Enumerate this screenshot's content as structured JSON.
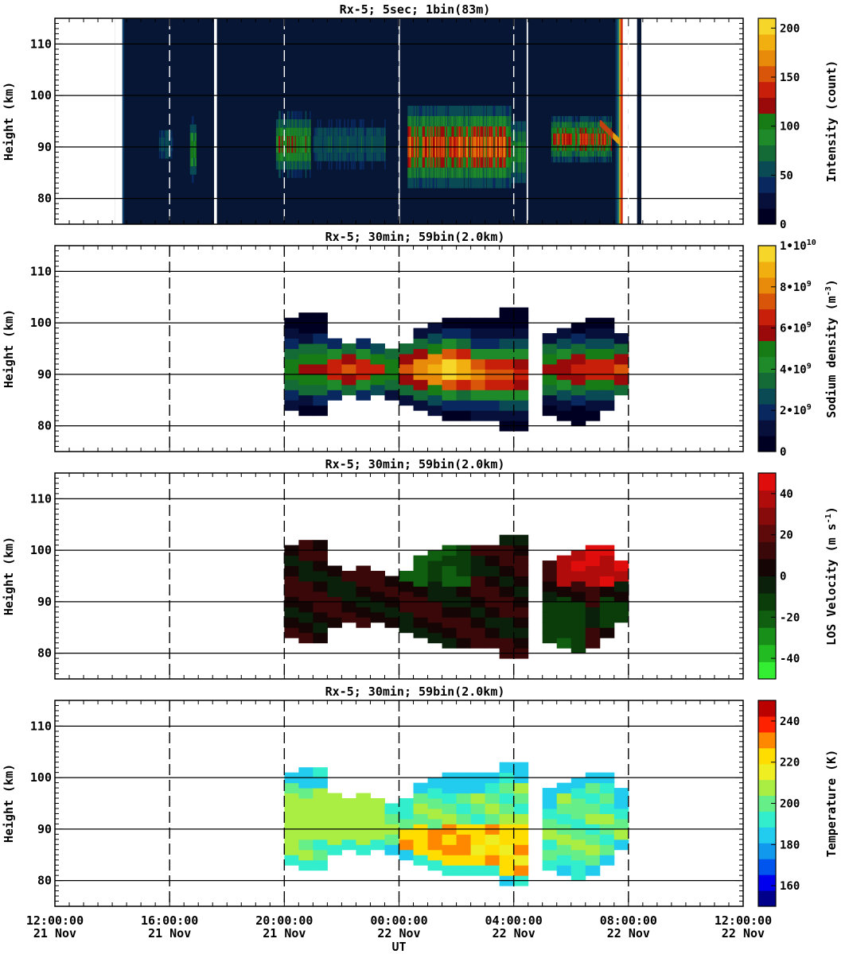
{
  "figure": {
    "xlabel": "UT",
    "x_ticks": [
      {
        "time": "12:00:00",
        "date": "21 Nov"
      },
      {
        "time": "16:00:00",
        "date": "21 Nov"
      },
      {
        "time": "20:00:00",
        "date": "21 Nov"
      },
      {
        "time": "00:00:00",
        "date": "22 Nov"
      },
      {
        "time": "04:00:00",
        "date": "22 Nov"
      },
      {
        "time": "08:00:00",
        "date": "22 Nov"
      },
      {
        "time": "12:00:00",
        "date": "22 Nov"
      }
    ]
  },
  "chart_data": [
    {
      "type": "heatmap",
      "title": "Rx-5;  5sec; 1bin(83m)",
      "ylabel": "Height (km)",
      "y_ticks": [
        80,
        90,
        100,
        110
      ],
      "ylim": [
        75,
        115
      ],
      "xlim_hours_ut": [
        12,
        36
      ],
      "colorbar": {
        "label": "Intensity (count)",
        "ticks": [
          "0",
          "50",
          "100",
          "150",
          "200"
        ],
        "range": [
          0,
          210
        ],
        "colors": [
          "#000022",
          "#06103a",
          "#0a2860",
          "#0a4a54",
          "#156b35",
          "#1f8a2a",
          "#177b16",
          "#9a0a0a",
          "#c81f0a",
          "#d9550a",
          "#e88a0a",
          "#f2b010",
          "#f7d62a"
        ]
      },
      "data_gaps_hours_ut": [
        [
          14.1,
          14.35
        ],
        [
          17.55,
          17.65
        ],
        [
          24.0,
          24.03
        ],
        [
          28.45,
          28.5
        ],
        [
          31.8,
          32.0
        ],
        [
          32.15,
          36.0
        ],
        [
          12.0,
          14.1
        ]
      ],
      "notes": "Continuous high-resolution raw photon counts 14:10-07:50 UT; background glow (green/yellow at edges ~14:15 and ~07:40), sodium layer 82-98 km strongest 00:30-03:30 UT (~100-180 counts)"
    },
    {
      "type": "heatmap",
      "title": "Rx-5; 30min; 59bin(2.0km)",
      "ylabel": "Height (km)",
      "y_ticks": [
        80,
        90,
        100,
        110
      ],
      "ylim": [
        75,
        115
      ],
      "colorbar": {
        "label": "Sodium density (m^-3)",
        "ticks": [
          "0",
          "2•10^9",
          "4•10^9",
          "6•10^9",
          "8•10^9",
          "1•10^10"
        ],
        "range": [
          0,
          10000000000
        ],
        "colors": [
          "#000022",
          "#06103a",
          "#0a2860",
          "#0a4a54",
          "#156b35",
          "#1f8a2a",
          "#177b16",
          "#9a0a0a",
          "#c81f0a",
          "#d9550a",
          "#e88a0a",
          "#f2b010",
          "#f7d62a"
        ]
      },
      "unit_scale": 1000000000.0,
      "columns": [
        {
          "t": 20.0,
          "bottom": 83,
          "top": 101,
          "peak": 91,
          "max": 5.0,
          "width": 6
        },
        {
          "t": 20.5,
          "bottom": 82,
          "top": 101,
          "peak": 91,
          "max": 5.5,
          "width": 6
        },
        {
          "t": 21.0,
          "bottom": 82,
          "top": 101,
          "peak": 91,
          "max": 6.0,
          "width": 6
        },
        {
          "t": 21.5,
          "bottom": 85,
          "top": 96,
          "peak": 91,
          "max": 7.0,
          "width": 5
        },
        {
          "t": 22.0,
          "bottom": 86,
          "top": 95,
          "peak": 91,
          "max": 7.5,
          "width": 5
        },
        {
          "t": 22.5,
          "bottom": 85,
          "top": 96,
          "peak": 91,
          "max": 7.0,
          "width": 5
        },
        {
          "t": 23.0,
          "bottom": 86,
          "top": 95,
          "peak": 91,
          "max": 6.5,
          "width": 5
        },
        {
          "t": 23.5,
          "bottom": 85,
          "top": 95,
          "peak": 91,
          "max": 5.5,
          "width": 5
        },
        {
          "t": 24.0,
          "bottom": 84,
          "top": 96,
          "peak": 91,
          "max": 7.5,
          "width": 5
        },
        {
          "t": 24.5,
          "bottom": 83,
          "top": 99,
          "peak": 91,
          "max": 8.0,
          "width": 6
        },
        {
          "t": 25.0,
          "bottom": 82,
          "top": 100,
          "peak": 91,
          "max": 9.0,
          "width": 6
        },
        {
          "t": 25.5,
          "bottom": 81,
          "top": 100,
          "peak": 91,
          "max": 9.8,
          "width": 6
        },
        {
          "t": 26.0,
          "bottom": 81,
          "top": 100,
          "peak": 91,
          "max": 9.0,
          "width": 6
        },
        {
          "t": 26.5,
          "bottom": 81,
          "top": 100,
          "peak": 90,
          "max": 8.0,
          "width": 6
        },
        {
          "t": 27.0,
          "bottom": 81,
          "top": 101,
          "peak": 90,
          "max": 7.5,
          "width": 6
        },
        {
          "t": 27.5,
          "bottom": 79,
          "top": 102,
          "peak": 90,
          "max": 7.0,
          "width": 7
        },
        {
          "t": 28.0,
          "bottom": 79,
          "top": 102,
          "peak": 90,
          "max": 6.5,
          "width": 7
        },
        {
          "t": 29.0,
          "bottom": 82,
          "top": 97,
          "peak": 91,
          "max": 5.5,
          "width": 6
        },
        {
          "t": 29.5,
          "bottom": 81,
          "top": 99,
          "peak": 91,
          "max": 6.0,
          "width": 6
        },
        {
          "t": 30.0,
          "bottom": 80,
          "top": 100,
          "peak": 91,
          "max": 6.5,
          "width": 6
        },
        {
          "t": 30.5,
          "bottom": 81,
          "top": 101,
          "peak": 91,
          "max": 7.0,
          "width": 6
        },
        {
          "t": 31.0,
          "bottom": 83,
          "top": 100,
          "peak": 91,
          "max": 6.5,
          "width": 6
        },
        {
          "t": 31.5,
          "bottom": 86,
          "top": 97,
          "peak": 91,
          "max": 7.5,
          "width": 5
        }
      ]
    },
    {
      "type": "heatmap",
      "title": "Rx-5; 30min; 59bin(2.0km)",
      "ylabel": "Height (km)",
      "y_ticks": [
        80,
        90,
        100,
        110
      ],
      "ylim": [
        75,
        115
      ],
      "colorbar": {
        "label": "LOS Velocity (m s^-1)",
        "ticks": [
          "-40",
          "-20",
          "0",
          "20",
          "40"
        ],
        "range": [
          -50,
          50
        ],
        "colors": [
          "#33ee33",
          "#22bb22",
          "#188f18",
          "#105f10",
          "#0b3d0b",
          "#0a200a",
          "#150505",
          "#3a0808",
          "#5e0a0a",
          "#870b0b",
          "#b00c0c",
          "#e00d0d"
        ]
      },
      "columns_ref": "same coverage as sodium density panel",
      "notes": "Mostly dark red/brown near 0 to +15 m/s; green (about -20 m/s) near 00:00-02:00 above 93 km; bright red (+40 to +50 m/s) 05:00-07:30 above 93 km"
    },
    {
      "type": "heatmap",
      "title": "Rx-5; 30min; 59bin(2.0km)",
      "ylabel": "Height (km)",
      "y_ticks": [
        80,
        90,
        100,
        110
      ],
      "ylim": [
        75,
        115
      ],
      "colorbar": {
        "label": "Temperature (K)",
        "ticks": [
          "160",
          "180",
          "200",
          "220",
          "240"
        ],
        "range": [
          150,
          250
        ],
        "colors": [
          "#00008b",
          "#0000ee",
          "#0055ee",
          "#1199ee",
          "#22ccee",
          "#33eecc",
          "#66ee88",
          "#aaee44",
          "#eeee22",
          "#ffdd00",
          "#ff8800",
          "#ff2200",
          "#bb0000"
        ]
      },
      "columns_ref": "same coverage as sodium density panel",
      "notes": "Mostly 195-210 K; warm 215-240 K below 90 km 00:00-03:30 UT; cooler 175-190 K near top and bottom edges"
    }
  ]
}
